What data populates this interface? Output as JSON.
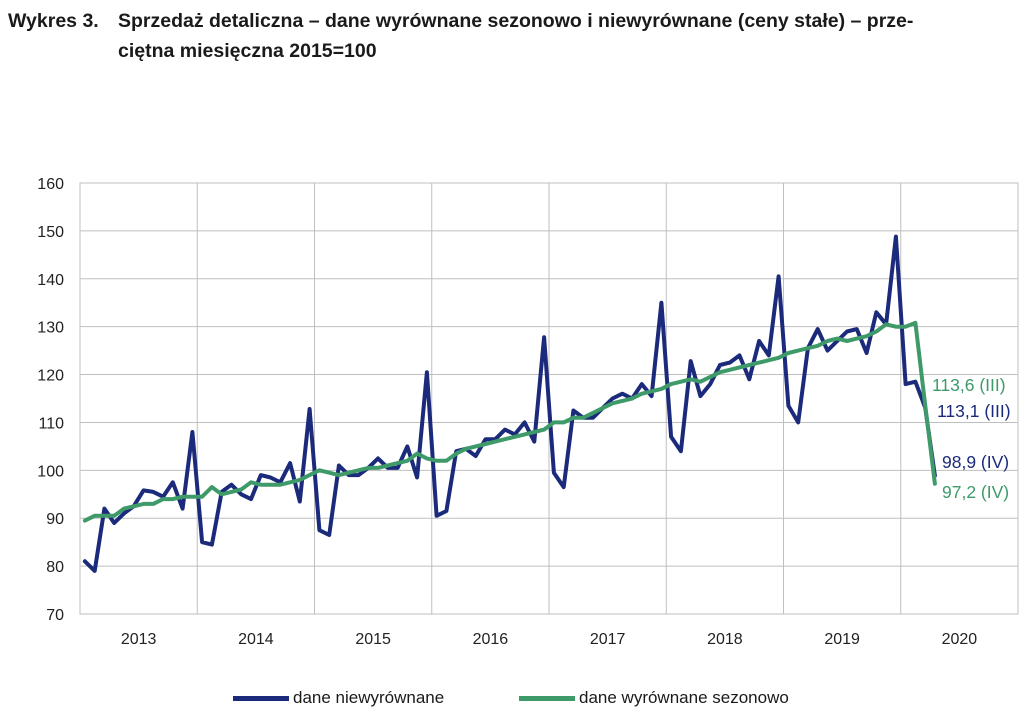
{
  "title": {
    "number": "Wykres 3.",
    "line1": "Sprzedaż detaliczna – dane wyrównane sezonowo i niewyrównane (ceny stałe) – prze-",
    "line2": "ciętna miesięczna 2015=100"
  },
  "colors": {
    "unadjusted": "#1b2a7a",
    "adjusted": "#3e9a68",
    "grid": "#bfbfbf",
    "axis": "#404040"
  },
  "chart_data": {
    "type": "line",
    "ylim": [
      70,
      160
    ],
    "yticks": [
      "70",
      "80",
      "90",
      "100",
      "110",
      "120",
      "130",
      "140",
      "150",
      "160"
    ],
    "years": [
      "2013",
      "2014",
      "2015",
      "2016",
      "2017",
      "2018",
      "2019",
      "2020"
    ],
    "x_start": "2013-01",
    "grid": true,
    "series": [
      {
        "name": "dane niewyrównane",
        "color": "#1b2a7a",
        "values": [
          81.0,
          79.0,
          92.0,
          89.0,
          91.0,
          92.5,
          95.8,
          95.5,
          94.5,
          97.5,
          92.0,
          108.0,
          85.0,
          84.5,
          95.5,
          97.0,
          95.0,
          94.0,
          99.0,
          98.5,
          97.5,
          101.5,
          93.5,
          112.8,
          87.5,
          86.5,
          101.0,
          99.0,
          99.0,
          100.5,
          102.5,
          100.5,
          100.5,
          105.0,
          98.5,
          120.5,
          90.5,
          91.5,
          104.0,
          104.5,
          103.0,
          106.5,
          106.5,
          108.5,
          107.5,
          110.0,
          106.0,
          127.8,
          99.5,
          96.5,
          112.5,
          111.0,
          111.0,
          113.0,
          115.0,
          116.0,
          115.0,
          118.0,
          115.5,
          135.0,
          107.0,
          104.0,
          122.8,
          115.5,
          118.0,
          122.0,
          122.5,
          124.0,
          119.0,
          127.0,
          124.0,
          140.5,
          113.5,
          110.0,
          125.5,
          129.5,
          125.0,
          127.0,
          129.0,
          129.5,
          124.5,
          133.0,
          130.5,
          148.8,
          118.0,
          118.5,
          113.1,
          98.9
        ]
      },
      {
        "name": "dane wyrównane sezonowo",
        "color": "#3e9a68",
        "values": [
          89.5,
          90.5,
          90.5,
          90.5,
          92.0,
          92.5,
          93.0,
          93.0,
          94.0,
          94.0,
          94.5,
          94.5,
          94.5,
          96.5,
          95.0,
          95.5,
          96.0,
          97.5,
          97.0,
          97.0,
          97.0,
          97.5,
          98.0,
          99.0,
          100.0,
          99.5,
          99.0,
          99.5,
          100.0,
          100.5,
          100.5,
          101.0,
          101.5,
          102.0,
          103.5,
          102.5,
          102.0,
          102.0,
          103.5,
          104.5,
          105.0,
          105.5,
          106.0,
          106.5,
          107.0,
          107.5,
          108.0,
          108.5,
          110.0,
          110.0,
          111.0,
          111.0,
          112.0,
          113.0,
          114.0,
          114.5,
          115.0,
          116.0,
          116.5,
          117.0,
          118.0,
          118.5,
          119.0,
          118.5,
          119.5,
          120.5,
          121.0,
          121.5,
          122.0,
          122.5,
          123.0,
          123.5,
          124.5,
          125.0,
          125.5,
          126.0,
          127.0,
          127.5,
          127.0,
          127.5,
          128.0,
          129.0,
          130.5,
          130.0,
          130.0,
          130.8,
          113.6,
          97.2
        ]
      }
    ],
    "annotations": [
      {
        "text": "113,6 (III)",
        "series": 1,
        "color": "#3e9a68"
      },
      {
        "text": "113,1 (III)",
        "series": 0,
        "color": "#1b2a7a"
      },
      {
        "text": "98,9 (IV)",
        "series": 0,
        "color": "#1b2a7a"
      },
      {
        "text": "97,2 (IV)",
        "series": 1,
        "color": "#3e9a68"
      }
    ],
    "legend_position": "bottom"
  }
}
